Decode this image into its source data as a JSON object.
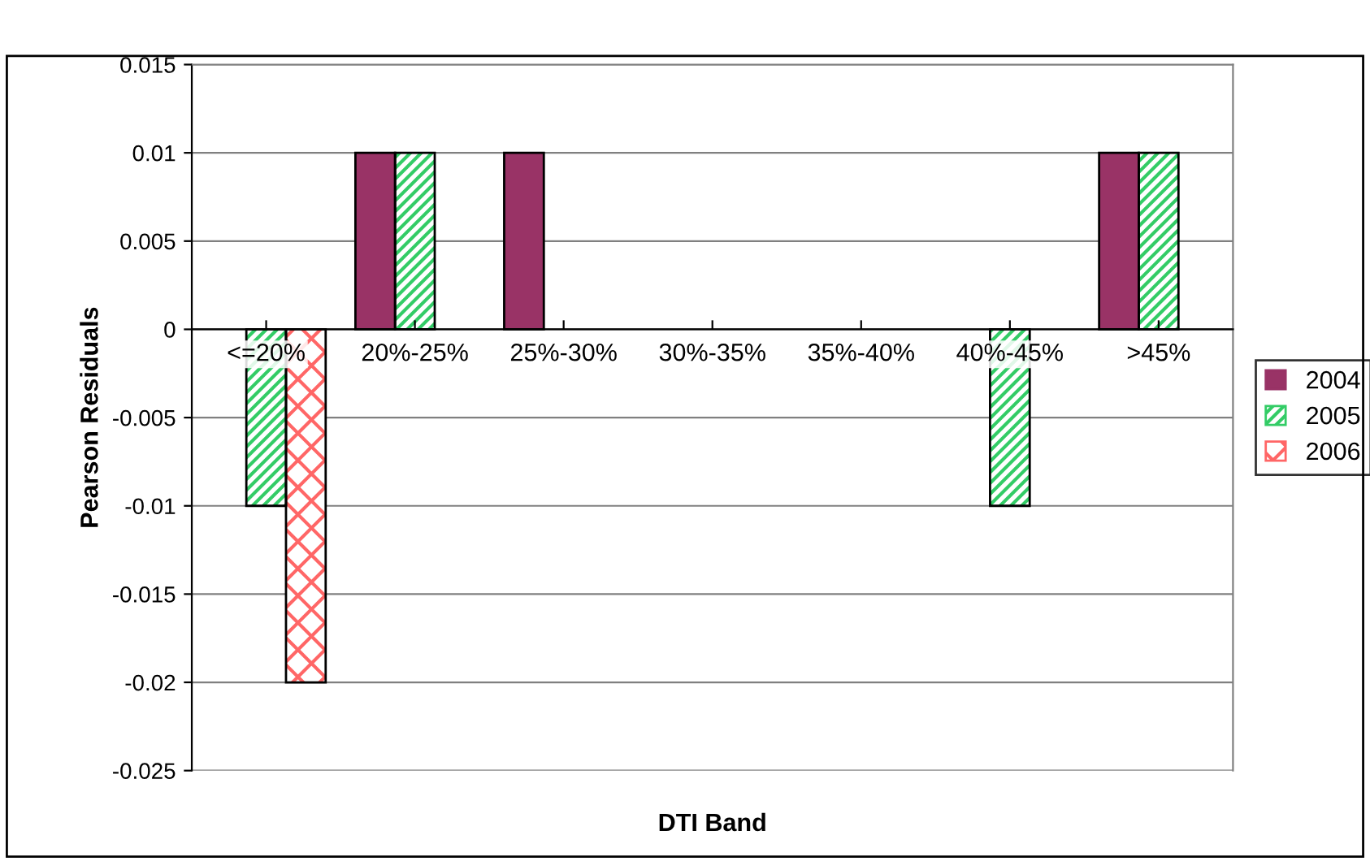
{
  "chart_data": {
    "type": "bar",
    "xlabel": "DTI Band",
    "ylabel": "Pearson Residuals",
    "categories": [
      "<=20%",
      "20%-25%",
      "25%-30%",
      "30%-35%",
      "35%-40%",
      "40%-45%",
      ">45%"
    ],
    "series": [
      {
        "name": "2004",
        "color": "#993366",
        "values": [
          null,
          0.01,
          0.01,
          null,
          null,
          null,
          0.01
        ]
      },
      {
        "name": "2005",
        "color": "#33cc66",
        "values": [
          -0.01,
          0.01,
          null,
          null,
          null,
          -0.01,
          0.01
        ]
      },
      {
        "name": "2006",
        "color": "#ff6666",
        "values": [
          -0.02,
          null,
          null,
          null,
          null,
          null,
          null
        ]
      }
    ],
    "ylim": [
      -0.025,
      0.015
    ],
    "yticks": [
      -0.025,
      -0.02,
      -0.015,
      -0.01,
      -0.005,
      0,
      0.005,
      0.01,
      0.015
    ],
    "grid": "y",
    "legend": "right"
  }
}
